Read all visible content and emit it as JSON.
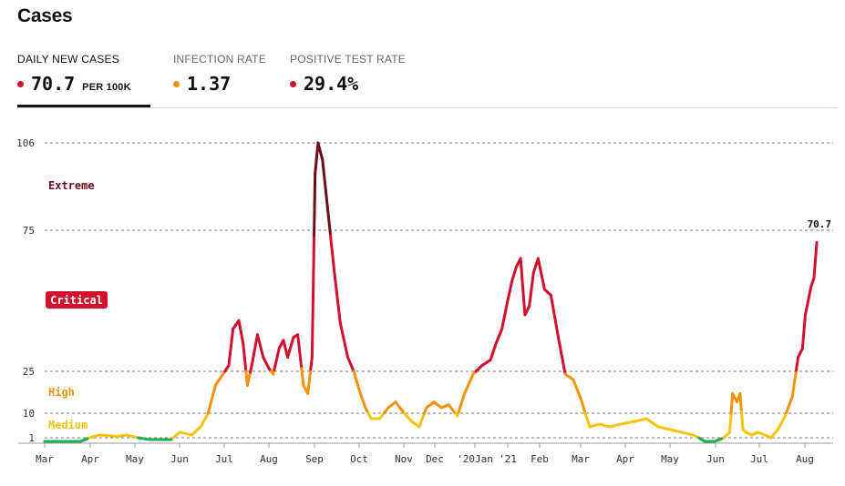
{
  "header": {
    "title": "Cases"
  },
  "tabs": [
    {
      "label": "DAILY NEW CASES",
      "value": "70.7",
      "unit": "PER 100K",
      "color": "#d1112d",
      "active": true
    },
    {
      "label": "INFECTION RATE",
      "value": "1.37",
      "unit": "",
      "color": "#f2930a",
      "active": false
    },
    {
      "label": "POSITIVE TEST RATE",
      "value": "29.4%",
      "unit": "",
      "color": "#d1112d",
      "active": false
    }
  ],
  "chart_data": {
    "type": "line",
    "title": "",
    "xlabel": "",
    "ylabel": "",
    "x_tick_labels": [
      "Mar",
      "Apr",
      "May",
      "Jun",
      "Jul",
      "Aug",
      "Sep",
      "Oct",
      "Nov",
      "Dec",
      "'20Jan",
      "'21",
      "Feb",
      "Mar",
      "Apr",
      "May",
      "Jun",
      "Jul",
      "Aug"
    ],
    "y_ticks": [
      {
        "value": 1,
        "label": "1"
      },
      {
        "value": 10,
        "label": "10"
      },
      {
        "value": 25,
        "label": "25"
      },
      {
        "value": 75,
        "label": "75"
      },
      {
        "value": 106,
        "label": "106"
      }
    ],
    "ylim": [
      0,
      106
    ],
    "grid": "dashed horizontal at y tick values",
    "zones": [
      {
        "label": "Medium",
        "from": 1,
        "to": 10,
        "color": "#f2c40f"
      },
      {
        "label": "High",
        "from": 10,
        "to": 25,
        "color": "#f2930a"
      },
      {
        "label": "Critical",
        "from": 25,
        "to": 75,
        "color": "#d1112d",
        "boxed": true
      },
      {
        "label": "Extreme",
        "from": 75,
        "to": 106,
        "color": "#6e0e1c"
      }
    ],
    "low_color": "#1fae55",
    "last_value_label": "70.7",
    "series": [
      {
        "x": [
          "2020-03-01",
          "2020-03-15",
          "2020-03-26",
          "2020-04-01",
          "2020-04-08",
          "2020-04-20",
          "2020-04-26",
          "2020-05-04",
          "2020-05-12",
          "2020-05-20",
          "2020-05-27",
          "2020-06-02",
          "2020-06-10",
          "2020-06-16",
          "2020-06-21",
          "2020-06-26",
          "2020-07-01",
          "2020-07-05",
          "2020-07-08",
          "2020-07-12",
          "2020-07-15",
          "2020-07-18",
          "2020-07-21",
          "2020-07-25",
          "2020-07-29",
          "2020-08-02",
          "2020-08-05",
          "2020-08-09",
          "2020-08-12",
          "2020-08-15",
          "2020-08-19",
          "2020-08-22",
          "2020-08-26",
          "2020-08-29",
          "2020-09-01",
          "2020-09-03",
          "2020-09-05",
          "2020-09-08",
          "2020-09-12",
          "2020-09-16",
          "2020-09-20",
          "2020-09-25",
          "2020-09-29",
          "2020-10-03",
          "2020-10-07",
          "2020-10-11",
          "2020-10-17",
          "2020-10-23",
          "2020-10-28",
          "2020-11-03",
          "2020-11-08",
          "2020-11-13",
          "2020-11-18",
          "2020-11-23",
          "2020-11-28",
          "2020-12-03",
          "2020-12-09",
          "2020-12-14",
          "2020-12-20",
          "2020-12-26",
          "2021-01-01",
          "2021-01-05",
          "2021-01-09",
          "2021-01-13",
          "2021-01-16",
          "2021-01-19",
          "2021-01-22",
          "2021-01-25",
          "2021-01-28",
          "2021-01-31",
          "2021-02-03",
          "2021-02-07",
          "2021-02-11",
          "2021-02-16",
          "2021-02-20",
          "2021-02-25",
          "2021-03-02",
          "2021-03-08",
          "2021-03-15",
          "2021-03-22",
          "2021-03-30",
          "2021-04-08",
          "2021-04-16",
          "2021-04-24",
          "2021-05-02",
          "2021-05-10",
          "2021-05-18",
          "2021-05-26",
          "2021-06-02",
          "2021-06-08",
          "2021-06-12",
          "2021-06-14",
          "2021-06-17",
          "2021-06-19",
          "2021-06-21",
          "2021-06-23",
          "2021-06-27",
          "2021-07-01",
          "2021-07-06",
          "2021-07-10",
          "2021-07-15",
          "2021-07-20",
          "2021-07-25",
          "2021-07-29",
          "2021-08-01",
          "2021-08-03",
          "2021-08-05",
          "2021-08-07",
          "2021-08-09",
          "2021-08-11"
        ],
        "y": [
          0,
          0,
          0,
          1,
          2,
          1.5,
          2,
          1,
          0.5,
          0.5,
          0.5,
          3,
          2,
          5,
          10,
          20,
          24,
          27,
          40,
          43,
          35,
          20,
          27,
          38,
          30,
          26,
          24,
          33,
          36,
          30,
          37,
          38,
          20,
          17,
          30,
          95,
          106,
          100,
          80,
          60,
          42,
          30,
          25,
          18,
          12,
          8,
          8,
          12,
          14,
          10,
          7,
          5,
          12,
          14,
          12,
          13,
          9,
          17,
          24,
          27,
          29,
          35,
          40,
          50,
          57,
          62,
          65,
          45,
          48,
          60,
          65,
          54,
          52,
          36,
          24,
          22,
          15,
          5,
          6,
          5,
          6,
          7,
          8,
          5,
          4,
          3,
          2,
          0,
          0,
          1,
          3,
          17,
          14,
          17,
          4,
          3,
          2,
          3,
          2,
          1,
          4,
          9,
          16,
          30,
          33,
          45,
          50,
          55,
          58,
          70.7
        ]
      }
    ]
  }
}
